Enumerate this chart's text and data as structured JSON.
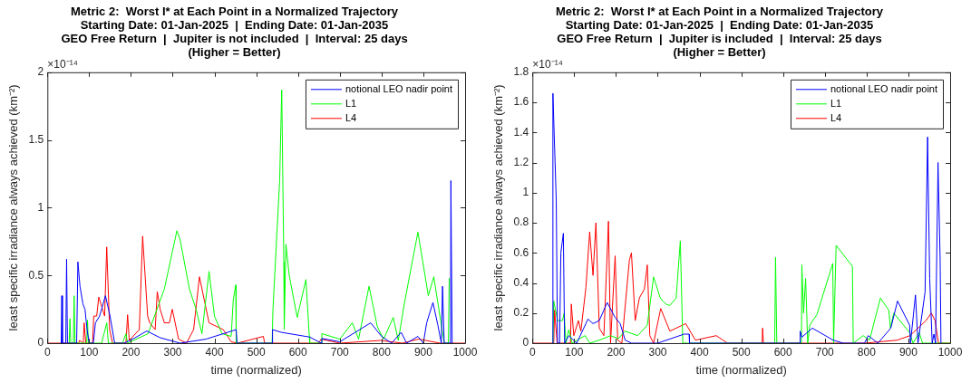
{
  "chart_data": [
    {
      "type": "line",
      "title": "Metric 2:  Worst I* at Each Point in a Normalized Trajectory\nStarting Date: 01-Jan-2025  |  Ending Date: 01-Jan-2035\nGEO Free Return  |  Jupiter is not included  |  Interval: 25 days\n(Higher = Better)",
      "xlabel": "time (normalized)",
      "ylabel": "least specific irradiance always achieved (km⁻²)",
      "annotations": [
        "×10⁻¹⁴"
      ],
      "xlim": [
        0,
        1000
      ],
      "xticks": [
        0,
        100,
        200,
        300,
        400,
        500,
        600,
        700,
        800,
        900,
        1000
      ],
      "ylim": [
        0,
        2
      ],
      "yticks": [
        0,
        0.5,
        1,
        1.5,
        2
      ],
      "grid": false,
      "legend": "top right",
      "marker": "none",
      "line_style": "solid",
      "series": [
        {
          "name": "notional LEO nadir point",
          "color": "#0000ff",
          "x": [
            33,
            34.5,
            36,
            44,
            46,
            48,
            70,
            73,
            78,
            85,
            90,
            95,
            100,
            110,
            115,
            125,
            139,
            150,
            161,
            184,
            210,
            238,
            270,
            318,
            380,
            452,
            454,
            538,
            539,
            560,
            628,
            656,
            657,
            700,
            774,
            800,
            824,
            847,
            860,
            887,
            900,
            908,
            923,
            935,
            943,
            946,
            950,
            965,
            966,
            969
          ],
          "values": [
            0,
            0.35,
            0,
            0,
            0.62,
            0,
            0,
            0.6,
            0.42,
            0.29,
            0.25,
            0.1,
            0,
            0,
            0.15,
            0.2,
            0.35,
            0.2,
            0,
            0,
            0.04,
            0.09,
            0.04,
            0,
            0.03,
            0.1,
            0,
            0,
            0.1,
            0.08,
            0.045,
            0,
            0.035,
            0.01,
            0.15,
            0.05,
            0,
            0.08,
            0,
            0.05,
            0,
            0.15,
            0.3,
            0.13,
            0,
            0.42,
            0,
            0,
            1.2,
            0
          ]
        },
        {
          "name": "L1",
          "color": "#00ff00",
          "x": [
            52,
            54,
            56,
            62,
            64,
            66,
            94,
            96,
            98,
            130,
            142,
            146,
            180,
            188,
            192,
            241,
            280,
            310,
            318,
            340,
            356,
            370,
            387,
            400,
            418,
            440,
            445,
            451,
            452,
            538,
            540,
            556,
            561,
            566,
            567,
            571,
            579,
            598,
            619,
            627,
            628,
            656,
            657,
            700,
            730,
            745,
            770,
            790,
            805,
            828,
            840,
            855,
            887,
            912,
            925,
            950,
            960,
            962
          ],
          "values": [
            0,
            0.18,
            0,
            0,
            0.35,
            0,
            0,
            0.17,
            0,
            0,
            0.15,
            0,
            0,
            0.07,
            0,
            0.07,
            0.4,
            0.83,
            0.76,
            0.4,
            0.25,
            0.07,
            0.53,
            0.2,
            0.07,
            0.05,
            0.32,
            0.43,
            0,
            0,
            0.25,
            1.2,
            1.87,
            0.6,
            0.1,
            0.73,
            0.5,
            0.19,
            0.47,
            0.05,
            0,
            0,
            0.07,
            0.03,
            0.15,
            0.03,
            0.42,
            0.12,
            0.03,
            0.19,
            0.02,
            0.3,
            0.82,
            0.35,
            0.49,
            0,
            0,
            0.48
          ]
        },
        {
          "name": "L4",
          "color": "#ff0000",
          "x": [
            0,
            75,
            77,
            86,
            88,
            92,
            108,
            111,
            118,
            123,
            130,
            137,
            142,
            149,
            156,
            188,
            192,
            196,
            220,
            228,
            240,
            245,
            258,
            263,
            270,
            280,
            292,
            299,
            314,
            333,
            350,
            364,
            387,
            421,
            440,
            455,
            517,
            520,
            540,
            650,
            655,
            700,
            797,
            850,
            889,
            940,
            1000
          ],
          "values": [
            0,
            0,
            0.02,
            0,
            0.15,
            0,
            0,
            0.2,
            0.2,
            0.34,
            0.27,
            0.2,
            0.71,
            0.1,
            0,
            0,
            0.21,
            0.02,
            0.1,
            0.79,
            0.2,
            0.15,
            0.1,
            0.38,
            0.25,
            0.15,
            0.15,
            0.25,
            0.03,
            0,
            0.1,
            0.49,
            0.15,
            0.1,
            0.01,
            0,
            0.05,
            0,
            0,
            0,
            0.03,
            0,
            0.02,
            0,
            0.03,
            0,
            0
          ]
        }
      ]
    },
    {
      "type": "line",
      "title": "Metric 2:  Worst I* at Each Point in a Normalized Trajectory\nStarting Date: 01-Jan-2025  |  Ending Date: 01-Jan-2035\nGEO Free Return  |  Jupiter is included  |  Interval: 25 days\n(Higher = Better)",
      "xlabel": "time (normalized)",
      "ylabel": "least specific irradiance always achieved (km⁻²)",
      "annotations": [
        "×10⁻¹⁴"
      ],
      "xlim": [
        0,
        1000
      ],
      "xticks": [
        0,
        100,
        200,
        300,
        400,
        500,
        600,
        700,
        800,
        900,
        1000
      ],
      "ylim": [
        0,
        1.8
      ],
      "yticks": [
        0,
        0.2,
        0.4,
        0.6,
        0.8,
        1,
        1.2,
        1.4,
        1.6,
        1.8
      ],
      "grid": false,
      "legend": "top right",
      "marker": "none",
      "line_style": "solid",
      "series": [
        {
          "name": "notional LEO nadir point",
          "color": "#0000ff",
          "x": [
            48,
            49,
            57,
            60,
            65,
            68,
            74,
            77,
            87,
            106,
            133,
            145,
            160,
            179,
            198,
            210,
            222,
            237,
            300,
            363,
            375,
            376,
            640,
            641,
            645,
            670,
            720,
            744,
            795,
            804,
            827,
            858,
            874,
            903,
            905,
            917,
            923,
            940,
            946,
            951,
            957,
            961,
            965,
            971,
            976,
            978
          ],
          "values": [
            0,
            1.66,
            0.95,
            0,
            0,
            0.6,
            0.73,
            0,
            0.05,
            0,
            0.16,
            0.13,
            0.15,
            0.27,
            0.17,
            0.13,
            0.02,
            0,
            0,
            0.06,
            0.06,
            0,
            0,
            0.08,
            0.04,
            0.1,
            0.02,
            0,
            0,
            0.05,
            0,
            0.1,
            0.28,
            0.12,
            0,
            0.32,
            0,
            0.34,
            1.37,
            0.43,
            0,
            0.06,
            0,
            1.2,
            0.56,
            0
          ]
        },
        {
          "name": "L1",
          "color": "#00ff00",
          "x": [
            49,
            51,
            60,
            72,
            76,
            80,
            87,
            95,
            126,
            137,
            160,
            187,
            206,
            221,
            252,
            275,
            290,
            306,
            319,
            329,
            344,
            354,
            360,
            580,
            582,
            585,
            644,
            645,
            649,
            654,
            659,
            664,
            681,
            719,
            721,
            727,
            766,
            768,
            792,
            807,
            833,
            853,
            857,
            865,
            903,
            911,
            926,
            934,
            1000
          ],
          "values": [
            0,
            0.28,
            0.15,
            0.15,
            0.2,
            0,
            0.09,
            0,
            0.05,
            0,
            0.02,
            0.05,
            0.03,
            0.08,
            0.05,
            0.12,
            0.44,
            0.3,
            0.26,
            0.25,
            0.3,
            0.68,
            0,
            0,
            0.57,
            0,
            0,
            0.52,
            0.2,
            0.43,
            0,
            0.12,
            0.19,
            0.53,
            0,
            0.65,
            0.51,
            0,
            0.05,
            0.02,
            0.3,
            0.22,
            0.1,
            0.2,
            0.07,
            0,
            0.07,
            0,
            0
          ]
        },
        {
          "name": "L4",
          "color": "#ff0000",
          "x": [
            0,
            51,
            53,
            59,
            91,
            93,
            99,
            110,
            116,
            128,
            137,
            145,
            152,
            160,
            171,
            182,
            187,
            198,
            204,
            214,
            232,
            237,
            246,
            256,
            268,
            275,
            281,
            290,
            307,
            329,
            367,
            390,
            440,
            467,
            550,
            551,
            553,
            796,
            873,
            904,
            942,
            955,
            964,
            972,
            1000
          ],
          "values": [
            0,
            0,
            0.22,
            0,
            0,
            0.26,
            0.05,
            0.15,
            0.08,
            0.37,
            0.74,
            0.45,
            0.8,
            0.1,
            0.05,
            0.81,
            0,
            0.58,
            0.02,
            0,
            0.55,
            0.6,
            0.15,
            0.3,
            0.36,
            0.52,
            0.05,
            0,
            0.23,
            0.08,
            0.13,
            0.02,
            0.05,
            0,
            0,
            0.1,
            0,
            0,
            0.02,
            0.05,
            0.15,
            0.2,
            0.15,
            0,
            0
          ]
        }
      ]
    }
  ]
}
